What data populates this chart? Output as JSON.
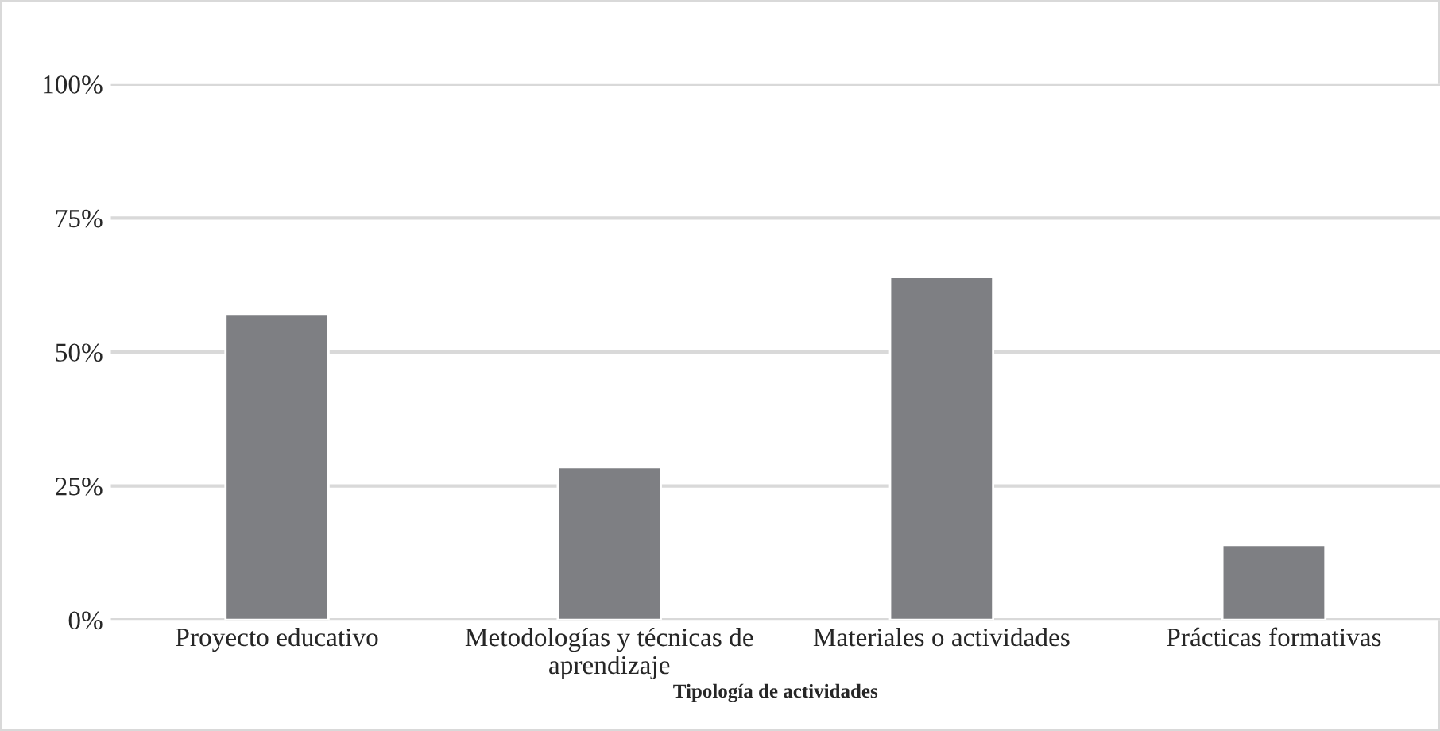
{
  "chart_data": {
    "type": "bar",
    "xlabel": "Tipología de actividades",
    "categories": [
      "Proyecto educativo",
      "Metodologías y técnicas de\naprendizaje",
      "Materiales o actividades",
      "Prácticas formativas"
    ],
    "values": [
      57,
      28.5,
      64,
      14
    ],
    "color": "#7e7f83",
    "ylim": [
      0,
      100
    ],
    "yticks": [
      {
        "value": 0,
        "label": "0%"
      },
      {
        "value": 25,
        "label": "25%"
      },
      {
        "value": 50,
        "label": "50%"
      },
      {
        "value": 75,
        "label": "75%"
      },
      {
        "value": 100,
        "label": "100%"
      }
    ],
    "grid": "y"
  }
}
